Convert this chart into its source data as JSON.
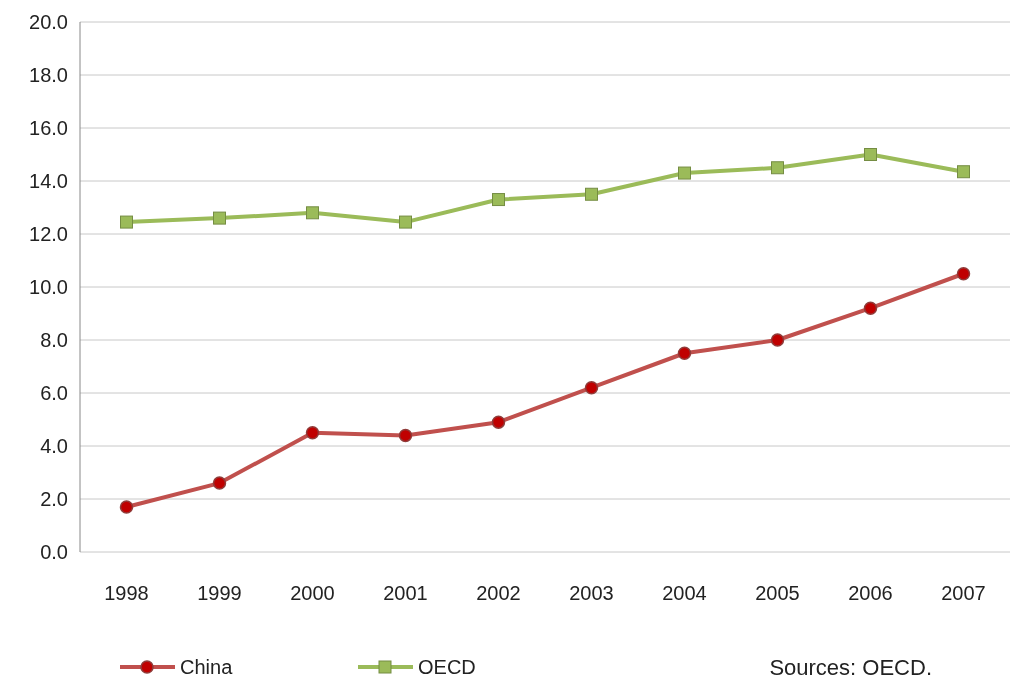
{
  "chart_data": {
    "type": "line",
    "categories": [
      "1998",
      "1999",
      "2000",
      "2001",
      "2002",
      "2003",
      "2004",
      "2005",
      "2006",
      "2007"
    ],
    "series": [
      {
        "name": "China",
        "color": "#c0504d",
        "marker": "circle",
        "values": [
          1.7,
          2.6,
          4.5,
          4.4,
          4.9,
          6.2,
          7.5,
          8.0,
          9.2,
          10.5
        ]
      },
      {
        "name": "OECD",
        "color": "#9bbb59",
        "marker": "square",
        "values": [
          12.45,
          12.6,
          12.8,
          12.45,
          13.3,
          13.5,
          14.3,
          14.5,
          15.0,
          14.35
        ]
      }
    ],
    "ylim": [
      0,
      20
    ],
    "yticks": [
      {
        "value": 0,
        "label": "0.0"
      },
      {
        "value": 2,
        "label": "2.0"
      },
      {
        "value": 4,
        "label": "4.0"
      },
      {
        "value": 6,
        "label": "6.0"
      },
      {
        "value": 8,
        "label": "8.0"
      },
      {
        "value": 10,
        "label": "10.0"
      },
      {
        "value": 12,
        "label": "12.0"
      },
      {
        "value": 14,
        "label": "14.0"
      },
      {
        "value": 16,
        "label": "16.0"
      },
      {
        "value": 18,
        "label": "18.0"
      },
      {
        "value": 20,
        "label": "20.0"
      }
    ],
    "grid": "y",
    "legend": "bottom",
    "line_style": "solid",
    "annotations": [
      "Sources: OECD."
    ]
  }
}
